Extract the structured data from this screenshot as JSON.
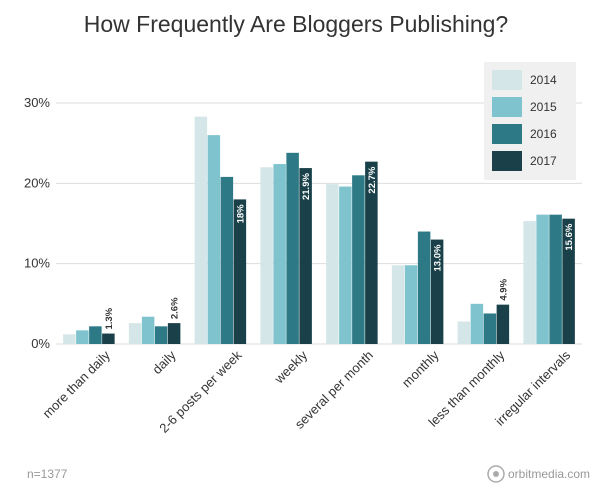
{
  "chart_data": {
    "type": "bar",
    "title": "How Frequently Are Bloggers Publishing?",
    "categories": [
      "more than daily",
      "daily",
      "2-6 posts per week",
      "weekly",
      "several per month",
      "monthly",
      "less than monthly",
      "irregular intervals"
    ],
    "series": [
      {
        "name": "2014",
        "color": "#d5e6e8",
        "values": [
          1.2,
          2.6,
          28.3,
          22.0,
          19.9,
          9.8,
          2.8,
          15.3
        ]
      },
      {
        "name": "2015",
        "color": "#7fc3ce",
        "values": [
          1.7,
          3.4,
          26.0,
          22.4,
          19.6,
          9.8,
          5.0,
          16.1
        ]
      },
      {
        "name": "2016",
        "color": "#2d7a86",
        "values": [
          2.2,
          2.2,
          20.8,
          23.8,
          21.0,
          14.0,
          3.8,
          16.1
        ]
      },
      {
        "name": "2017",
        "color": "#1a4149",
        "values": [
          1.3,
          2.6,
          18.0,
          21.9,
          22.7,
          13.0,
          4.9,
          15.6
        ]
      }
    ],
    "data_labels": [
      "1.3%",
      "2.6%",
      "18%",
      "21.9%",
      "22.7%",
      "13.0%",
      "4.9%",
      "15.6%"
    ],
    "yticks": [
      "0%",
      "10%",
      "20%",
      "30%"
    ],
    "ylim": [
      0,
      30
    ],
    "xlabel": "",
    "ylabel": "",
    "legend_position": "top-right",
    "grid": true,
    "footnote": "n=1377",
    "source": "orbitmedia.com"
  }
}
